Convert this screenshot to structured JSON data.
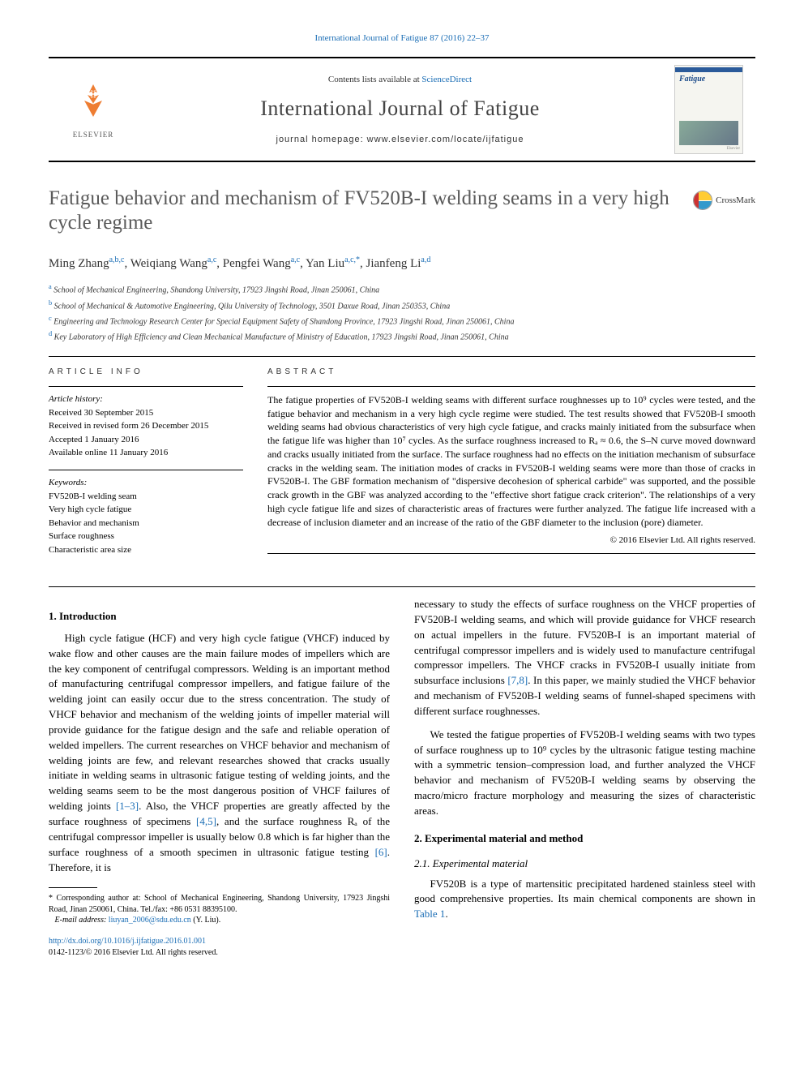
{
  "header": {
    "citation": "International Journal of Fatigue 87 (2016) 22–37",
    "contents_prefix": "Contents lists available at ",
    "contents_link": "ScienceDirect",
    "journal": "International Journal of Fatigue",
    "homepage": "journal homepage: www.elsevier.com/locate/ijfatigue",
    "elsevier": "ELSEVIER",
    "cover_title": "Fatigue",
    "cover_publisher": "Elsevier",
    "crossmark": "CrossMark"
  },
  "article": {
    "title": "Fatigue behavior and mechanism of FV520B-I welding seams in a very high cycle regime",
    "authors_html": "Ming Zhang<sup>a,b,c</sup>, Weiqiang Wang<sup>a,c</sup>, Pengfei Wang<sup>a,c</sup>, Yan Liu<sup>a,c,*</sup>, Jianfeng Li<sup>a,d</sup>",
    "affiliations": [
      {
        "tag": "a",
        "text": "School of Mechanical Engineering, Shandong University, 17923 Jingshi Road, Jinan 250061, China"
      },
      {
        "tag": "b",
        "text": "School of Mechanical & Automotive Engineering, Qilu University of Technology, 3501 Daxue Road, Jinan 250353, China"
      },
      {
        "tag": "c",
        "text": "Engineering and Technology Research Center for Special Equipment Safety of Shandong Province, 17923 Jingshi Road, Jinan 250061, China"
      },
      {
        "tag": "d",
        "text": "Key Laboratory of High Efficiency and Clean Mechanical Manufacture of Ministry of Education, 17923 Jingshi Road, Jinan 250061, China"
      }
    ]
  },
  "article_info": {
    "head": "ARTICLE INFO",
    "history_head": "Article history:",
    "history": [
      "Received 30 September 2015",
      "Received in revised form 26 December 2015",
      "Accepted 1 January 2016",
      "Available online 11 January 2016"
    ],
    "kw_head": "Keywords:",
    "keywords": [
      "FV520B-I welding seam",
      "Very high cycle fatigue",
      "Behavior and mechanism",
      "Surface roughness",
      "Characteristic area size"
    ]
  },
  "abstract": {
    "head": "ABSTRACT",
    "text": "The fatigue properties of FV520B-I welding seams with different surface roughnesses up to 10⁹ cycles were tested, and the fatigue behavior and mechanism in a very high cycle regime were studied. The test results showed that FV520B-I smooth welding seams had obvious characteristics of very high cycle fatigue, and cracks mainly initiated from the subsurface when the fatigue life was higher than 10⁷ cycles. As the surface roughness increased to Rₐ ≈ 0.6, the S–N curve moved downward and cracks usually initiated from the surface. The surface roughness had no effects on the initiation mechanism of subsurface cracks in the welding seam. The initiation modes of cracks in FV520B-I welding seams were more than those of cracks in FV520B-I. The GBF formation mechanism of \"dispersive decohesion of spherical carbide\" was supported, and the possible crack growth in the GBF was analyzed according to the \"effective short fatigue crack criterion\". The relationships of a very high cycle fatigue life and sizes of characteristic areas of fractures were further analyzed. The fatigue life increased with a decrease of inclusion diameter and an increase of the ratio of the GBF diameter to the inclusion (pore) diameter.",
    "copyright": "© 2016 Elsevier Ltd. All rights reserved."
  },
  "body": {
    "intro_head": "1. Introduction",
    "exp_head": "2. Experimental material and method",
    "mat_head": "2.1. Experimental material",
    "p1a": "High cycle fatigue (HCF) and very high cycle fatigue (VHCF) induced by wake flow and other causes are the main failure modes of impellers which are the key component of centrifugal compressors. Welding is an important method of manufacturing centrifugal compressor impellers, and fatigue failure of the welding joint can easily occur due to the stress concentration. The study of VHCF behavior and mechanism of the welding joints of impeller material will provide guidance for the fatigue design and the safe and reliable operation of welded impellers. The current researches on VHCF behavior and mechanism of welding joints are few, and relevant researches showed that cracks usually initiate in welding seams in ultrasonic fatigue testing of welding joints, and the welding seams seem to be the most dangerous position of VHCF failures of welding joints ",
    "cite1": "[1–3]",
    "p1b": ". Also, the VHCF properties are greatly affected by the surface roughness of specimens ",
    "cite2": "[4,5]",
    "p1c": ", and the surface roughness Rₐ of the centrifugal compressor impeller is usually below 0.8 which is far higher than the surface roughness of a smooth specimen in ultrasonic fatigue testing ",
    "cite3": "[6]",
    "p1d": ". Therefore, it is ",
    "p2a": "necessary to study the effects of surface roughness on the VHCF properties of FV520B-I welding seams, and which will provide guidance for VHCF research on actual impellers in the future. FV520B-I is an important material of centrifugal compressor impellers and is widely used to manufacture centrifugal compressor impellers. The VHCF cracks in FV520B-I usually initiate from subsurface inclusions ",
    "cite4": "[7,8]",
    "p2b": ". In this paper, we mainly studied the VHCF behavior and mechanism of FV520B-I welding seams of funnel-shaped specimens with different surface roughnesses.",
    "p3": "We tested the fatigue properties of FV520B-I welding seams with two types of surface roughness up to 10⁹ cycles by the ultrasonic fatigue testing machine with a symmetric tension–compression load, and further analyzed the VHCF behavior and mechanism of FV520B-I welding seams by observing the macro/micro fracture morphology and measuring the sizes of characteristic areas.",
    "p4a": "FV520B is a type of martensitic precipitated hardened stainless steel with good comprehensive properties. Its main chemical components are shown in ",
    "table1": "Table 1",
    "p4b": "."
  },
  "footnote": {
    "corr": "* Corresponding author at: School of Mechanical Engineering, Shandong University, 17923 Jingshi Road, Jinan 250061, China. Tel./fax: +86 0531 88395100.",
    "email_label": "E-mail address: ",
    "email": "liuyan_2006@sdu.edu.cn",
    "email_name": " (Y. Liu).",
    "doi": "http://dx.doi.org/10.1016/j.ijfatigue.2016.01.001",
    "issn": "0142-1123/© 2016 Elsevier Ltd. All rights reserved."
  },
  "colors": {
    "link": "#1a6db5",
    "elsevier_orange": "#ee7d32",
    "title_gray": "#5a5a5a",
    "text": "#000000"
  }
}
